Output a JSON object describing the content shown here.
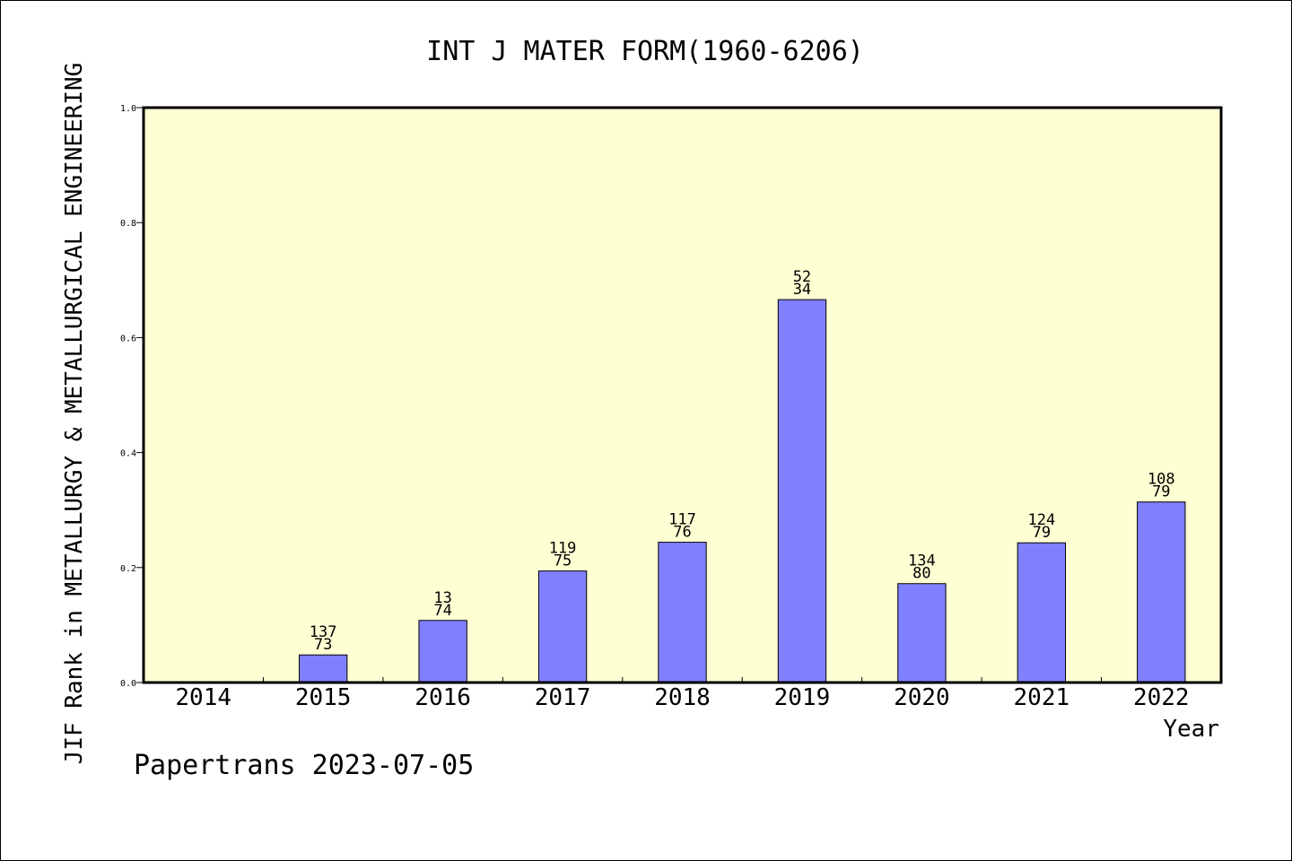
{
  "chart_data": {
    "type": "bar",
    "title": "INT J MATER FORM(1960-6206)",
    "xlabel": "Year",
    "ylabel": "JIF Rank in METALLURGY & METALLURGICAL ENGINEERING",
    "ylim": [
      0,
      1.0
    ],
    "yticks": [
      "0.0",
      "0.2",
      "0.4",
      "0.6",
      "0.8",
      "1.0"
    ],
    "categories": [
      "2014",
      "2015",
      "2016",
      "2017",
      "2018",
      "2019",
      "2020",
      "2021",
      "2022"
    ],
    "values": [
      null,
      0.048,
      0.108,
      0.194,
      0.244,
      0.666,
      0.172,
      0.243,
      0.314
    ],
    "rank_labels": [
      "",
      "137",
      "13",
      "119",
      "117",
      "52",
      "134",
      "124",
      "108"
    ],
    "total_labels": [
      "",
      "73",
      "74",
      "75",
      "76",
      "34",
      "80",
      "79",
      "79"
    ],
    "grid": false,
    "legend": "none",
    "colors": {
      "plot_background": "#ffffd4",
      "bar_fill": "#8080ff",
      "bar_stroke": "#000000"
    }
  },
  "footer": {
    "watermark": "Papertrans 2023-07-05"
  }
}
